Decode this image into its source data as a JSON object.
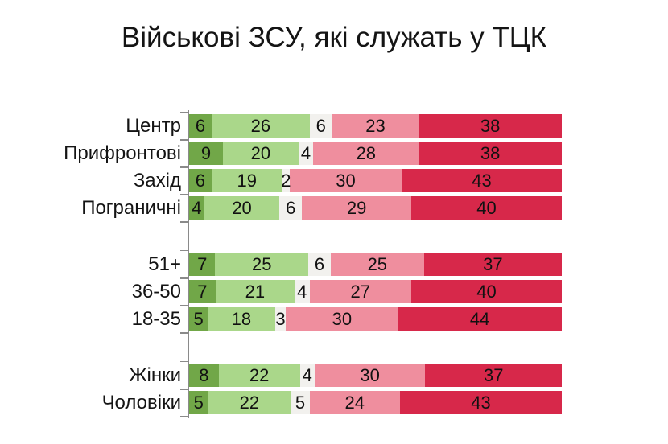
{
  "title": "Військові ЗСУ, які служать у ТЦК",
  "colors": {
    "segment_dark_green": "#71A748",
    "segment_light_green": "#AAD78A",
    "segment_neutral": "#F2F1EE",
    "segment_pink": "#EF8E9E",
    "segment_red": "#D7284A",
    "axis": "#8A8A8A",
    "text": "#141414",
    "background": "#FFFFFF"
  },
  "chart_data": {
    "type": "bar",
    "orientation": "horizontal",
    "stacked": true,
    "normalized_to_100_percent": true,
    "title": "Військові ЗСУ, які служать у ТЦК",
    "unit": "percent",
    "legend": "none",
    "grid": false,
    "segment_names": [
      "dark-green",
      "light-green",
      "neutral",
      "pink",
      "red"
    ],
    "segment_colors": [
      "#71A748",
      "#AAD78A",
      "#F2F1EE",
      "#EF8E9E",
      "#D7284A"
    ],
    "groups": [
      {
        "name": "region",
        "rows": [
          {
            "label": "Центр",
            "values": [
              6,
              26,
              6,
              23,
              38
            ]
          },
          {
            "label": "Прифронтові",
            "values": [
              9,
              20,
              4,
              28,
              38
            ]
          },
          {
            "label": "Захід",
            "values": [
              6,
              19,
              2,
              30,
              43
            ]
          },
          {
            "label": "Пограничні",
            "values": [
              4,
              20,
              6,
              29,
              40
            ]
          }
        ]
      },
      {
        "name": "age",
        "rows": [
          {
            "label": "51+",
            "values": [
              7,
              25,
              6,
              25,
              37
            ]
          },
          {
            "label": "36-50",
            "values": [
              7,
              21,
              4,
              27,
              40
            ]
          },
          {
            "label": "18-35",
            "values": [
              5,
              18,
              3,
              30,
              44
            ]
          }
        ]
      },
      {
        "name": "gender",
        "rows": [
          {
            "label": "Жінки",
            "values": [
              8,
              22,
              4,
              30,
              37
            ]
          },
          {
            "label": "Чоловіки",
            "values": [
              5,
              22,
              5,
              24,
              43
            ]
          }
        ]
      }
    ]
  }
}
